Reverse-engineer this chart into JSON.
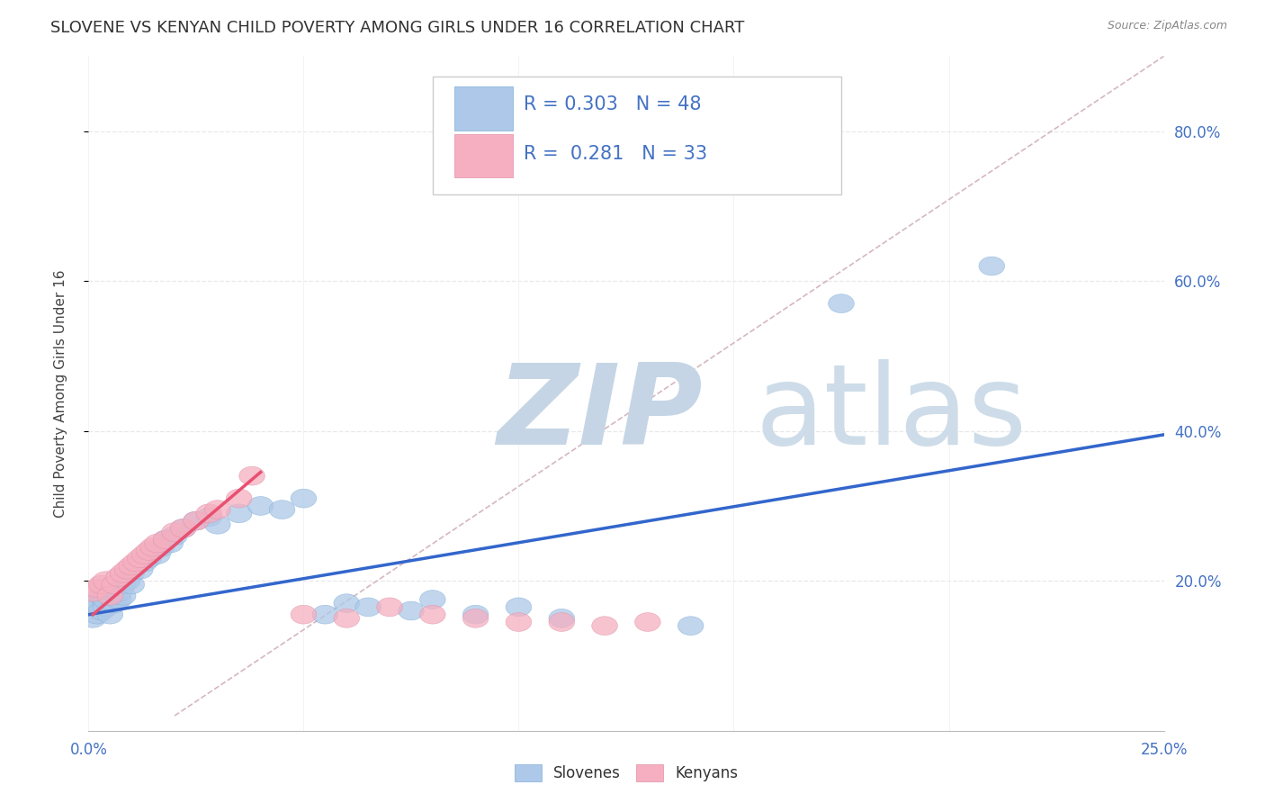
{
  "title": "SLOVENE VS KENYAN CHILD POVERTY AMONG GIRLS UNDER 16 CORRELATION CHART",
  "source": "Source: ZipAtlas.com",
  "ylabel": "Child Poverty Among Girls Under 16",
  "xlim": [
    0.0,
    0.25
  ],
  "ylim": [
    0.0,
    0.9
  ],
  "xticks": [
    0.0,
    0.05,
    0.1,
    0.15,
    0.2,
    0.25
  ],
  "yticks": [
    0.2,
    0.4,
    0.6,
    0.8
  ],
  "slovene_R": 0.303,
  "slovene_N": 48,
  "kenyan_R": 0.281,
  "kenyan_N": 33,
  "slovene_color": "#adc8e8",
  "kenyan_color": "#f5afc0",
  "slovene_line_color": "#3366cc",
  "kenyan_line_color": "#e85070",
  "ref_line_color": "#d0b0b8",
  "watermark_zip": "ZIP",
  "watermark_atlas": "atlas",
  "watermark_color_zip": "#c8d8e8",
  "watermark_color_atlas": "#c0d0e0",
  "background_color": "#ffffff",
  "grid_color": "#e8e8e8",
  "slovene_x": [
    0.001,
    0.001,
    0.002,
    0.002,
    0.003,
    0.003,
    0.004,
    0.004,
    0.005,
    0.005,
    0.006,
    0.006,
    0.007,
    0.007,
    0.008,
    0.008,
    0.009,
    0.01,
    0.01,
    0.011,
    0.012,
    0.013,
    0.014,
    0.015,
    0.016,
    0.017,
    0.018,
    0.019,
    0.02,
    0.022,
    0.025,
    0.028,
    0.03,
    0.035,
    0.04,
    0.045,
    0.05,
    0.055,
    0.06,
    0.065,
    0.075,
    0.08,
    0.09,
    0.1,
    0.11,
    0.14,
    0.175,
    0.21
  ],
  "slovene_y": [
    0.15,
    0.165,
    0.155,
    0.17,
    0.16,
    0.18,
    0.165,
    0.175,
    0.155,
    0.185,
    0.17,
    0.19,
    0.175,
    0.185,
    0.195,
    0.18,
    0.2,
    0.21,
    0.195,
    0.22,
    0.215,
    0.225,
    0.23,
    0.24,
    0.235,
    0.245,
    0.255,
    0.25,
    0.26,
    0.27,
    0.28,
    0.285,
    0.275,
    0.29,
    0.3,
    0.295,
    0.31,
    0.155,
    0.17,
    0.165,
    0.16,
    0.175,
    0.155,
    0.165,
    0.15,
    0.14,
    0.57,
    0.62
  ],
  "kenyan_x": [
    0.001,
    0.002,
    0.003,
    0.004,
    0.005,
    0.006,
    0.007,
    0.008,
    0.009,
    0.01,
    0.011,
    0.012,
    0.013,
    0.014,
    0.015,
    0.016,
    0.018,
    0.02,
    0.022,
    0.025,
    0.028,
    0.03,
    0.035,
    0.038,
    0.05,
    0.06,
    0.07,
    0.08,
    0.09,
    0.1,
    0.11,
    0.12,
    0.13
  ],
  "kenyan_y": [
    0.185,
    0.19,
    0.195,
    0.2,
    0.18,
    0.195,
    0.205,
    0.21,
    0.215,
    0.22,
    0.225,
    0.23,
    0.235,
    0.24,
    0.245,
    0.25,
    0.255,
    0.265,
    0.27,
    0.28,
    0.29,
    0.295,
    0.31,
    0.34,
    0.155,
    0.15,
    0.165,
    0.155,
    0.15,
    0.145,
    0.145,
    0.14,
    0.145
  ],
  "slovene_line_x": [
    0.0,
    0.25
  ],
  "slovene_line_y": [
    0.155,
    0.395
  ],
  "kenyan_line_x": [
    0.001,
    0.04
  ],
  "kenyan_line_y": [
    0.155,
    0.345
  ]
}
